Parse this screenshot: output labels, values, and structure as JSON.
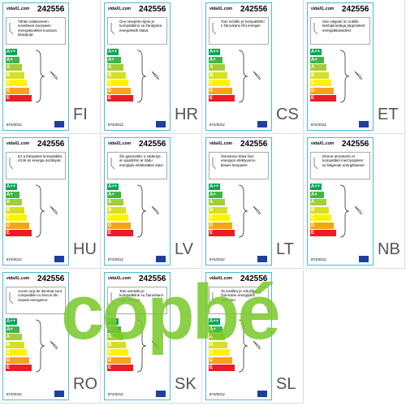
{
  "classes": [
    "A++",
    "A+",
    "A",
    "B",
    "C",
    "D",
    "E"
  ],
  "watermark": "copbé",
  "labels": [
    {
      "brand": "vidaXL.com",
      "number": "242556",
      "text": "Tähän valaisimeen sovellavat seuraavin energialuokkiin kuuluvia lamppuja:",
      "regulation": "874/2012",
      "code": "FI"
    },
    {
      "brand": "vidaXL.com",
      "number": "242556",
      "text": "Ovo rasvjetno tijelo je kompatibilno sa žaruljama energetskih klasa:",
      "regulation": "874/2012",
      "code": "HR"
    },
    {
      "brand": "vidaXL.com",
      "number": "242556",
      "text": "Toto svítidlo je kompatibilní s žárovkami tříd energie:",
      "regulation": "874/2012",
      "code": "CS"
    },
    {
      "brand": "vidaXL.com",
      "number": "242556",
      "text": "See valgusti on sobilik lambipirnidega järgmistest energiaklassidest:",
      "regulation": "874/2012",
      "code": "ET"
    },
    {
      "brand": "vidaXL.com",
      "number": "242556",
      "text": "Ez a lámpatest kompatibilis izzók az energia osztályok:",
      "regulation": "874/2012",
      "code": "HU"
    },
    {
      "brand": "vidaXL.com",
      "number": "242556",
      "text": "Šis gaismeklis ir saderīgs ar spuldzēm ar šādu enerģijas efektivitātes klasi:",
      "regulation": "874/2012",
      "code": "LV"
    },
    {
      "brand": "vidaXL.com",
      "number": "242556",
      "text": "Šviestuvui tinka šios energijos efektyvumo klasės lemputės:",
      "regulation": "874/2012",
      "code": "LT"
    },
    {
      "brand": "vidaXL.com",
      "number": "242556",
      "text": "Denne armaturen er kompatibel med lyspærer av følgende energiklasser:",
      "regulation": "874/2012",
      "code": "NB"
    },
    {
      "brand": "vidaXL.com",
      "number": "242556",
      "text": "Acest corp de iluminat sunt compatibile cu becuri din clasele energetice:",
      "regulation": "874/2012",
      "code": "RO"
    },
    {
      "brand": "vidaXL.com",
      "number": "242556",
      "text": "Toto svietidlo je kompatibilné so žiarovkami tried energie:",
      "regulation": "874/2012",
      "code": "SK"
    },
    {
      "brand": "vidaXL.com",
      "number": "242556",
      "text": "Ta svetilka je združljiva z žarnicami energijskih razredov:",
      "regulation": "874/2012",
      "code": "SL"
    }
  ]
}
